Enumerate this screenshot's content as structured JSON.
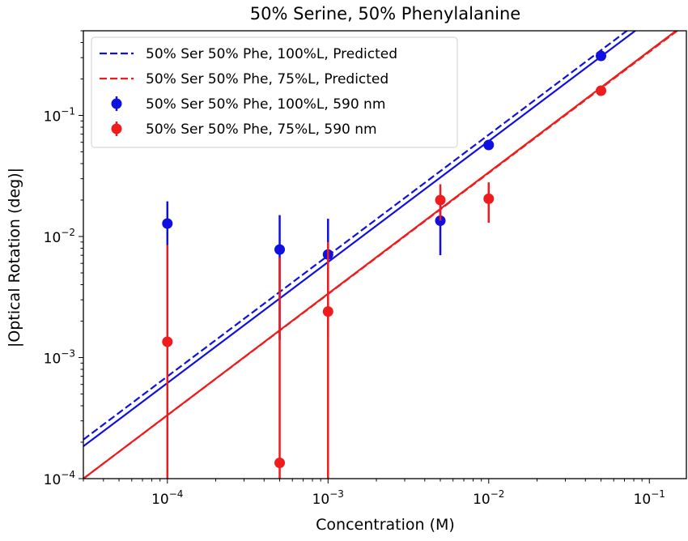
{
  "chart_data": {
    "type": "scatter",
    "title": "50% Serine, 50% Phenylalanine",
    "xlabel": "Concentration (M)",
    "ylabel": "|Optical Rotation (deg)|",
    "xscale": "log",
    "yscale": "log",
    "xlim": [
      3e-05,
      0.17
    ],
    "ylim": [
      0.0001,
      0.5
    ],
    "x_ticks": [
      {
        "value": 0.0001,
        "base": "10",
        "exp": "−4"
      },
      {
        "value": 0.001,
        "base": "10",
        "exp": "−3"
      },
      {
        "value": 0.01,
        "base": "10",
        "exp": "−2"
      },
      {
        "value": 0.1,
        "base": "10",
        "exp": "−1"
      }
    ],
    "y_ticks": [
      {
        "value": 0.0001,
        "base": "10",
        "exp": "−4"
      },
      {
        "value": 0.001,
        "base": "10",
        "exp": "−3"
      },
      {
        "value": 0.01,
        "base": "10",
        "exp": "−2"
      },
      {
        "value": 0.1,
        "base": "10",
        "exp": "−1"
      }
    ],
    "grid": false,
    "legend_position": "top-left",
    "series": [
      {
        "name": "50% Ser 50% Phe, 100%L, Predicted",
        "kind": "line",
        "style": "dashed",
        "color": "#1010e0",
        "x": [
          3e-05,
          0.17
        ],
        "y": [
          0.00021,
          1.17
        ]
      },
      {
        "name": "50% Ser 50% Phe, 75%L, Predicted",
        "kind": "line",
        "style": "dashed",
        "color": "#ee1c1c",
        "x": [
          3e-05,
          0.17
        ],
        "y": [
          0.0001,
          0.57
        ]
      },
      {
        "name": "50% Ser 50% Phe, 100%L, 590 nm",
        "kind": "errorbar",
        "color": "#1010e0",
        "points": [
          {
            "x": 0.0001,
            "y": 0.0128,
            "ylo": 0.0085,
            "yhi": 0.0195
          },
          {
            "x": 0.0005,
            "y": 0.0078,
            "ylo": 0.0014,
            "yhi": 0.015
          },
          {
            "x": 0.001,
            "y": 0.0071,
            "ylo": 0.0015,
            "yhi": 0.014
          },
          {
            "x": 0.005,
            "y": 0.0135,
            "ylo": 0.007,
            "yhi": 0.02
          },
          {
            "x": 0.01,
            "y": 0.057,
            "ylo": 0.054,
            "yhi": 0.06
          },
          {
            "x": 0.05,
            "y": 0.31,
            "ylo": 0.3,
            "yhi": 0.32
          }
        ]
      },
      {
        "name": "50% Ser 50% Phe, 75%L, 590 nm",
        "kind": "errorbar",
        "color": "#ee1c1c",
        "points": [
          {
            "x": 0.0001,
            "y": 0.00135,
            "ylo": 0.0001,
            "yhi": 0.0085
          },
          {
            "x": 0.0005,
            "y": 0.000135,
            "ylo": 0.0001,
            "yhi": 0.0067
          },
          {
            "x": 0.001,
            "y": 0.0024,
            "ylo": 0.0001,
            "yhi": 0.009
          },
          {
            "x": 0.005,
            "y": 0.02,
            "ylo": 0.0135,
            "yhi": 0.027
          },
          {
            "x": 0.01,
            "y": 0.0205,
            "ylo": 0.013,
            "yhi": 0.028
          },
          {
            "x": 0.05,
            "y": 0.16,
            "ylo": 0.155,
            "yhi": 0.165
          }
        ]
      }
    ],
    "fit_lines": [
      {
        "series": "50% Ser 50% Phe, 100%L, 590 nm",
        "color": "#1010e0",
        "x": [
          3e-05,
          0.17
        ],
        "y": [
          0.000185,
          1.04
        ]
      },
      {
        "series": "50% Ser 50% Phe, 75%L, 590 nm",
        "color": "#ee1c1c",
        "x": [
          3e-05,
          0.17
        ],
        "y": [
          0.0001,
          0.58
        ]
      }
    ]
  }
}
